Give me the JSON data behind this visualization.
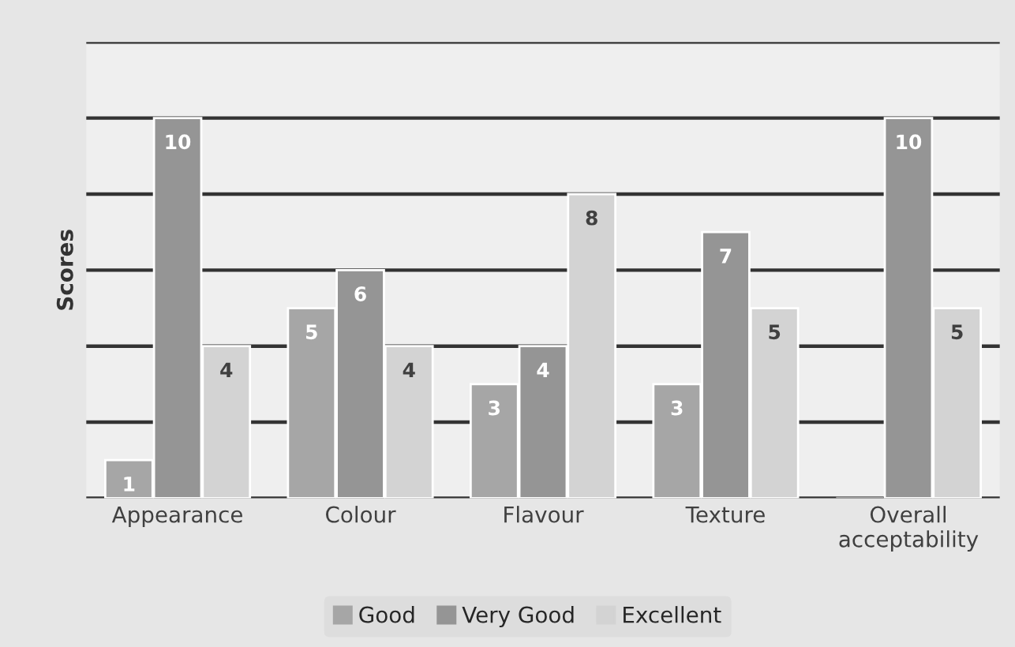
{
  "chart_data": {
    "type": "bar",
    "ylabel": "Scores",
    "categories": [
      "Appearance",
      "Colour",
      "Flavour",
      "Texture",
      "Overall\nacceptability"
    ],
    "series": [
      {
        "name": "Good",
        "color": "#a6a6a6",
        "values": [
          1,
          5,
          3,
          3,
          0
        ],
        "value_labels": [
          "1",
          "5",
          "3",
          "3",
          null
        ]
      },
      {
        "name": "Very Good",
        "color": "#959595",
        "values": [
          10,
          6,
          4,
          7,
          10
        ],
        "value_labels": [
          "10",
          "6",
          "4",
          "7",
          "10"
        ]
      },
      {
        "name": "Excellent",
        "color": "#d3d3d3",
        "values": [
          4,
          4,
          8,
          5,
          5
        ],
        "value_labels": [
          "4",
          "4",
          "8",
          "5",
          "5"
        ]
      }
    ],
    "ylim": [
      0,
      12
    ],
    "yticks": [
      {
        "value": 0,
        "label": null
      },
      {
        "value": 2,
        "label": null
      },
      {
        "value": 4,
        "label": null
      },
      {
        "value": 6,
        "label": null
      },
      {
        "value": 8,
        "label": null
      },
      {
        "value": 10,
        "label": null
      },
      {
        "value": 12,
        "label": null
      }
    ],
    "tick_labels": "x",
    "grid": "y",
    "legend": "bottom"
  }
}
